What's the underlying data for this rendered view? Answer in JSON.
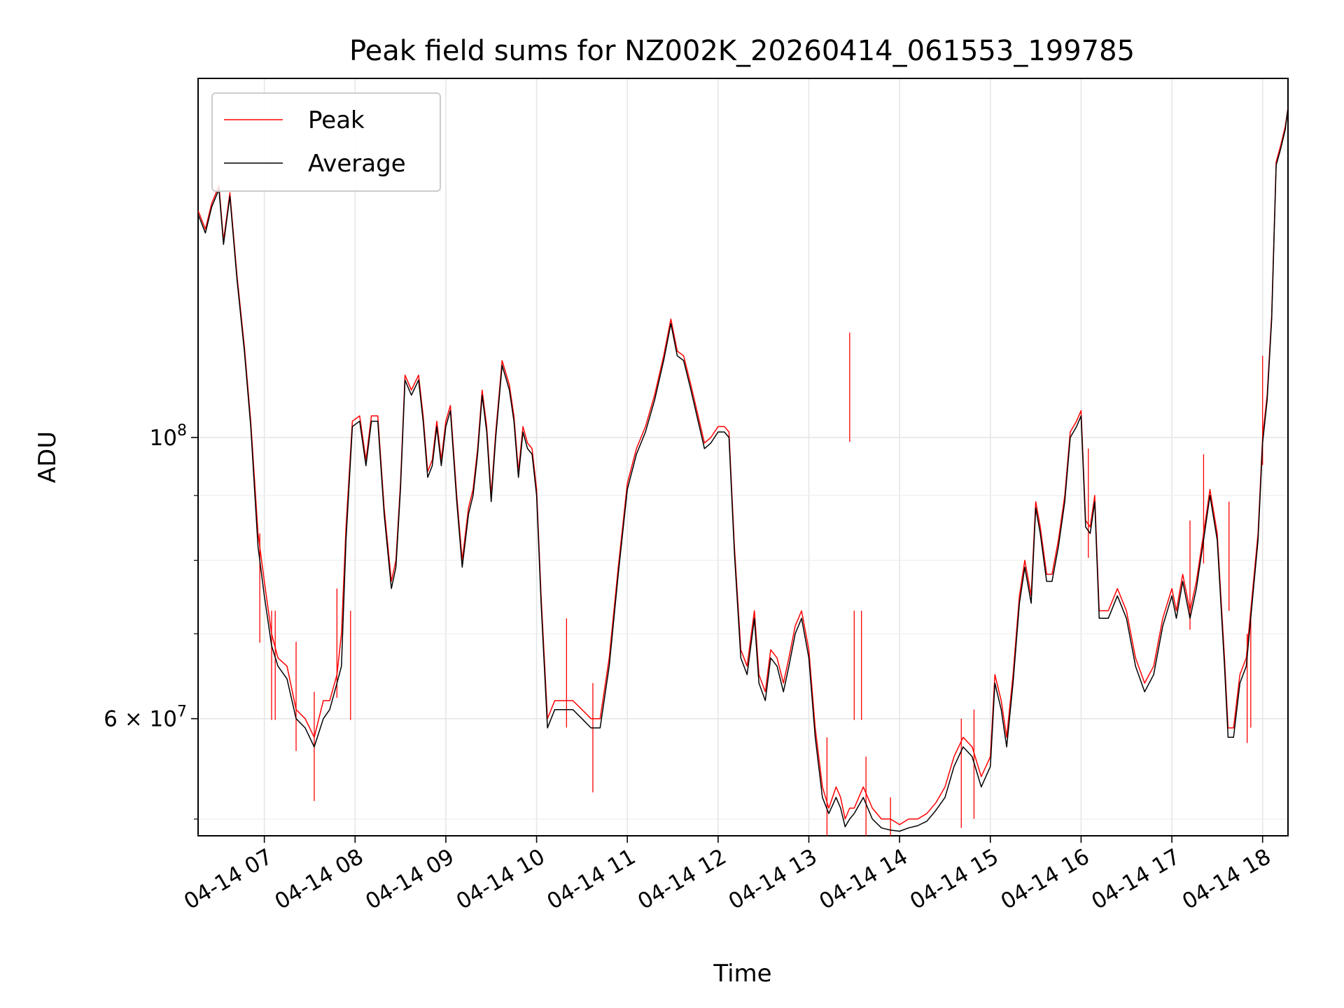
{
  "chart_data": {
    "type": "line",
    "title": "Peak field sums for NZ002K_20260414_061553_199785",
    "xlabel": "Time",
    "ylabel": "ADU",
    "yscale": "log",
    "grid": true,
    "legend_position": "upper-left",
    "xlim": [
      6.27,
      18.28
    ],
    "ylim": [
      48500000,
      192000000
    ],
    "x_ticks": [
      7,
      8,
      9,
      10,
      11,
      12,
      13,
      14,
      15,
      16,
      17,
      18
    ],
    "x_tick_labels": [
      "04-14 07",
      "04-14 08",
      "04-14 09",
      "04-14 10",
      "04-14 11",
      "04-14 12",
      "04-14 13",
      "04-14 14",
      "04-14 15",
      "04-14 16",
      "04-14 17",
      "04-14 18"
    ],
    "y_tick_labels": [
      {
        "value": 100000000,
        "base": "10",
        "exp": "8",
        "prefix": ""
      },
      {
        "value": 60000000,
        "base": "10",
        "exp": "7",
        "prefix": "6 × "
      }
    ],
    "y_minor_ticks": [
      50000000,
      70000000,
      80000000,
      90000000,
      200000000
    ],
    "series": [
      {
        "name": "Peak",
        "color": "#ff0000",
        "x": [
          6.27,
          6.35,
          6.42,
          6.5,
          6.55,
          6.62,
          6.7,
          6.78,
          6.85,
          6.93,
          7.0,
          7.08,
          7.15,
          7.25,
          7.35,
          7.45,
          7.55,
          7.65,
          7.72,
          7.8,
          7.85,
          7.9,
          7.97,
          8.05,
          8.12,
          8.18,
          8.25,
          8.32,
          8.4,
          8.45,
          8.5,
          8.55,
          8.62,
          8.7,
          8.75,
          8.8,
          8.85,
          8.9,
          8.95,
          9.0,
          9.05,
          9.12,
          9.18,
          9.25,
          9.3,
          9.35,
          9.4,
          9.45,
          9.5,
          9.55,
          9.62,
          9.7,
          9.75,
          9.8,
          9.85,
          9.9,
          9.95,
          10.0,
          10.05,
          10.12,
          10.2,
          10.3,
          10.4,
          10.5,
          10.6,
          10.7,
          10.8,
          10.9,
          11.0,
          11.1,
          11.2,
          11.3,
          11.4,
          11.48,
          11.55,
          11.62,
          11.7,
          11.78,
          11.85,
          11.92,
          12.0,
          12.07,
          12.12,
          12.18,
          12.25,
          12.32,
          12.4,
          12.45,
          12.52,
          12.58,
          12.65,
          12.72,
          12.78,
          12.85,
          12.92,
          13.0,
          13.07,
          13.15,
          13.22,
          13.3,
          13.35,
          13.4,
          13.45,
          13.5,
          13.6,
          13.7,
          13.8,
          13.9,
          14.0,
          14.1,
          14.2,
          14.3,
          14.4,
          14.5,
          14.6,
          14.7,
          14.8,
          14.9,
          15.0,
          15.05,
          15.12,
          15.18,
          15.25,
          15.32,
          15.38,
          15.45,
          15.5,
          15.55,
          15.62,
          15.68,
          15.75,
          15.82,
          15.88,
          15.95,
          16.0,
          16.05,
          16.1,
          16.15,
          16.2,
          16.3,
          16.4,
          16.5,
          16.6,
          16.7,
          16.8,
          16.9,
          17.0,
          17.05,
          17.12,
          17.2,
          17.27,
          17.35,
          17.42,
          17.5,
          17.58,
          17.62,
          17.68,
          17.75,
          17.82,
          17.9,
          17.95,
          18.0,
          18.05,
          18.1,
          18.15,
          18.2,
          18.25,
          18.28
        ],
        "y": [
          151000000,
          146000000,
          153000000,
          158000000,
          143000000,
          156000000,
          134000000,
          118000000,
          103000000,
          84000000,
          77000000,
          70000000,
          67000000,
          66000000,
          61000000,
          60000000,
          58000000,
          62000000,
          62000000,
          65000000,
          70000000,
          85000000,
          103000000,
          104000000,
          96000000,
          104000000,
          104000000,
          88000000,
          77000000,
          80000000,
          92000000,
          112000000,
          109000000,
          112000000,
          104000000,
          94000000,
          96000000,
          103000000,
          96000000,
          103000000,
          106000000,
          90000000,
          80000000,
          88000000,
          91000000,
          98000000,
          109000000,
          102000000,
          90000000,
          101000000,
          115000000,
          110000000,
          104000000,
          94000000,
          102000000,
          99000000,
          98000000,
          91000000,
          75000000,
          60000000,
          62000000,
          62000000,
          62000000,
          61000000,
          60000000,
          60000000,
          67000000,
          79000000,
          92000000,
          98000000,
          102000000,
          108000000,
          116000000,
          124000000,
          117000000,
          116000000,
          110000000,
          104000000,
          99000000,
          100000000,
          102000000,
          102000000,
          101000000,
          82000000,
          68000000,
          66000000,
          73000000,
          65000000,
          63000000,
          68000000,
          67000000,
          64000000,
          67000000,
          71000000,
          73000000,
          68000000,
          59000000,
          53000000,
          51000000,
          53000000,
          52000000,
          50000000,
          51000000,
          51000000,
          53000000,
          51000000,
          50000000,
          50000000,
          49500000,
          50000000,
          50000000,
          50500000,
          51500000,
          53000000,
          56000000,
          58000000,
          57000000,
          54000000,
          56000000,
          65000000,
          62000000,
          58000000,
          65000000,
          75000000,
          80000000,
          75000000,
          89000000,
          85000000,
          78000000,
          78000000,
          83000000,
          90000000,
          101000000,
          103000000,
          105000000,
          86000000,
          85000000,
          90000000,
          73000000,
          73000000,
          76000000,
          73000000,
          67000000,
          64000000,
          66000000,
          72000000,
          76000000,
          73000000,
          78000000,
          73000000,
          77000000,
          84000000,
          91000000,
          84000000,
          67000000,
          59000000,
          59000000,
          65000000,
          67000000,
          77000000,
          84000000,
          100000000,
          108000000,
          125000000,
          165000000,
          170000000,
          176000000,
          182000000
        ],
        "spikes": [
          {
            "x": 6.95,
            "y": 84000000
          },
          {
            "x": 7.08,
            "y": 73000000
          },
          {
            "x": 7.12,
            "y": 73000000
          },
          {
            "x": 7.35,
            "y": 69000000
          },
          {
            "x": 7.55,
            "y": 63000000
          },
          {
            "x": 7.8,
            "y": 76000000
          },
          {
            "x": 7.95,
            "y": 73000000
          },
          {
            "x": 10.33,
            "y": 72000000
          },
          {
            "x": 10.62,
            "y": 64000000
          },
          {
            "x": 13.2,
            "y": 58000000
          },
          {
            "x": 13.45,
            "y": 121000000
          },
          {
            "x": 13.5,
            "y": 73000000
          },
          {
            "x": 13.58,
            "y": 73000000
          },
          {
            "x": 13.63,
            "y": 56000000
          },
          {
            "x": 13.9,
            "y": 52000000
          },
          {
            "x": 14.68,
            "y": 60000000
          },
          {
            "x": 14.82,
            "y": 61000000
          },
          {
            "x": 16.08,
            "y": 98000000
          },
          {
            "x": 17.2,
            "y": 86000000
          },
          {
            "x": 17.35,
            "y": 97000000
          },
          {
            "x": 17.63,
            "y": 89000000
          },
          {
            "x": 17.83,
            "y": 70000000
          },
          {
            "x": 17.87,
            "y": 72000000
          },
          {
            "x": 18.0,
            "y": 116000000
          }
        ]
      },
      {
        "name": "Average",
        "color": "#000000",
        "x": [
          6.27,
          6.35,
          6.42,
          6.5,
          6.55,
          6.62,
          6.7,
          6.78,
          6.85,
          6.93,
          7.0,
          7.08,
          7.15,
          7.25,
          7.35,
          7.45,
          7.55,
          7.65,
          7.72,
          7.8,
          7.85,
          7.9,
          7.97,
          8.05,
          8.12,
          8.18,
          8.25,
          8.32,
          8.4,
          8.45,
          8.5,
          8.55,
          8.62,
          8.7,
          8.75,
          8.8,
          8.85,
          8.9,
          8.95,
          9.0,
          9.05,
          9.12,
          9.18,
          9.25,
          9.3,
          9.35,
          9.4,
          9.45,
          9.5,
          9.55,
          9.62,
          9.7,
          9.75,
          9.8,
          9.85,
          9.9,
          9.95,
          10.0,
          10.05,
          10.12,
          10.2,
          10.3,
          10.4,
          10.5,
          10.6,
          10.7,
          10.8,
          10.9,
          11.0,
          11.1,
          11.2,
          11.3,
          11.4,
          11.48,
          11.55,
          11.62,
          11.7,
          11.78,
          11.85,
          11.92,
          12.0,
          12.07,
          12.12,
          12.18,
          12.25,
          12.32,
          12.4,
          12.45,
          12.52,
          12.58,
          12.65,
          12.72,
          12.78,
          12.85,
          12.92,
          13.0,
          13.07,
          13.15,
          13.22,
          13.3,
          13.35,
          13.4,
          13.45,
          13.5,
          13.6,
          13.7,
          13.8,
          13.9,
          14.0,
          14.1,
          14.2,
          14.3,
          14.4,
          14.5,
          14.6,
          14.7,
          14.8,
          14.9,
          15.0,
          15.05,
          15.12,
          15.18,
          15.25,
          15.32,
          15.38,
          15.45,
          15.5,
          15.55,
          15.62,
          15.68,
          15.75,
          15.82,
          15.88,
          15.95,
          16.0,
          16.05,
          16.1,
          16.15,
          16.2,
          16.3,
          16.4,
          16.5,
          16.6,
          16.7,
          16.8,
          16.9,
          17.0,
          17.05,
          17.12,
          17.2,
          17.27,
          17.35,
          17.42,
          17.5,
          17.58,
          17.62,
          17.68,
          17.75,
          17.82,
          17.9,
          17.95,
          18.0,
          18.05,
          18.1,
          18.15,
          18.2,
          18.25,
          18.28
        ],
        "y": [
          150000000,
          145000000,
          152000000,
          157000000,
          142000000,
          155000000,
          133000000,
          117000000,
          102000000,
          82000000,
          75000000,
          68500000,
          66000000,
          64500000,
          60000000,
          59000000,
          57000000,
          60000000,
          61000000,
          64000000,
          66000000,
          83000000,
          102000000,
          103000000,
          95000000,
          103000000,
          103000000,
          87000000,
          76000000,
          79000000,
          91000000,
          111000000,
          108000000,
          111000000,
          103000000,
          93000000,
          95000000,
          102000000,
          95000000,
          102000000,
          105000000,
          89000000,
          79000000,
          87000000,
          90000000,
          97000000,
          108000000,
          101000000,
          89000000,
          100000000,
          114000000,
          109000000,
          103000000,
          93000000,
          101000000,
          98000000,
          97000000,
          90000000,
          74000000,
          59000000,
          61000000,
          61000000,
          61000000,
          60000000,
          59000000,
          59000000,
          66000000,
          78000000,
          91000000,
          97000000,
          101000000,
          107000000,
          115000000,
          123000000,
          116000000,
          115000000,
          109000000,
          103000000,
          98000000,
          99000000,
          101000000,
          101000000,
          100000000,
          81000000,
          67000000,
          65000000,
          72000000,
          64000000,
          62000000,
          67000000,
          66000000,
          63000000,
          66000000,
          70000000,
          72000000,
          67000000,
          58000000,
          52000000,
          50500000,
          52000000,
          51000000,
          49300000,
          50000000,
          50500000,
          52000000,
          50000000,
          49200000,
          49000000,
          48900000,
          49200000,
          49400000,
          49800000,
          50800000,
          52000000,
          55000000,
          57000000,
          56000000,
          53000000,
          55000000,
          64000000,
          61000000,
          57000000,
          64000000,
          74000000,
          79000000,
          74000000,
          88000000,
          84000000,
          77000000,
          77000000,
          82000000,
          89000000,
          100000000,
          102000000,
          104000000,
          85000000,
          84000000,
          89000000,
          72000000,
          72000000,
          75000000,
          72000000,
          66000000,
          63000000,
          65000000,
          71000000,
          75000000,
          72000000,
          77000000,
          72000000,
          76000000,
          83000000,
          90000000,
          83000000,
          66000000,
          58000000,
          58000000,
          64000000,
          66000000,
          76000000,
          83000000,
          99000000,
          107000000,
          124000000,
          164000000,
          169000000,
          175000000,
          182000000
        ]
      }
    ]
  }
}
